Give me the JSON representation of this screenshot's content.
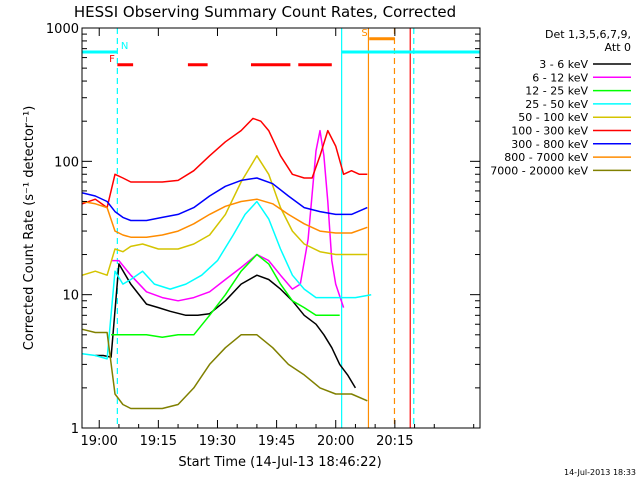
{
  "chart_data": {
    "type": "line",
    "title": "HESSI Observing Summary Count Rates, Corrected",
    "xlabel": "Start Time (14-Jul-13 18:46:22)",
    "ylabel": "Corrected Count Rate (s⁻¹ detector⁻¹)",
    "yscale": "log",
    "ylim": [
      1,
      1000
    ],
    "xlim_minutes": [
      -4.37,
      96.6
    ],
    "x_ticks": [
      {
        "label": "19:00",
        "minute": 0
      },
      {
        "label": "19:15",
        "minute": 15
      },
      {
        "label": "19:30",
        "minute": 30
      },
      {
        "label": "19:45",
        "minute": 45
      },
      {
        "label": "20:00",
        "minute": 60
      },
      {
        "label": "20:15",
        "minute": 75
      }
    ],
    "y_ticks": [
      {
        "label": "1",
        "value": 1
      },
      {
        "label": "10",
        "value": 10
      },
      {
        "label": "100",
        "value": 100
      },
      {
        "label": "1000",
        "value": 1000
      }
    ],
    "legend_header": [
      "Det 1,3,5,6,7,9,",
      "Att 0"
    ],
    "legend_position": "right",
    "footer_date": "14-Jul-2013 18:33",
    "flags": [
      {
        "label": "N",
        "color": "#00ffff",
        "segments": [
          [
            -4.37,
            4.6
          ]
        ],
        "label_minute": 5.5,
        "level": 660
      },
      {
        "label": "F",
        "color": "#ff0000",
        "segments": [
          [
            4.6,
            8.6
          ],
          [
            22.5,
            27.5
          ],
          [
            38.5,
            48.5
          ],
          [
            50.5,
            59.0
          ]
        ],
        "label_minute": 2.5,
        "level": 530
      },
      {
        "label": "S",
        "color": "#ff8c00",
        "segments": [
          [
            68.5,
            75.0
          ]
        ],
        "label_minute": 66.5,
        "level": 830
      },
      {
        "label": "",
        "color": "#00ffff",
        "segments": [
          [
            61.5,
            96.6
          ]
        ],
        "label_minute": 0,
        "level": 660
      }
    ],
    "vlines": [
      {
        "minute": 4.6,
        "color": "#00ffff",
        "style": "dashed"
      },
      {
        "minute": 61.5,
        "color": "#00ffff",
        "style": "solid"
      },
      {
        "minute": 68.3,
        "color": "#ff8c00",
        "style": "solid"
      },
      {
        "minute": 74.9,
        "color": "#ff8c00",
        "style": "dashed"
      },
      {
        "minute": 78.9,
        "color": "#ff0000",
        "style": "solid"
      },
      {
        "minute": 79.8,
        "color": "#00ffff",
        "style": "dashed"
      }
    ],
    "series": [
      {
        "name": "3 - 6 keV",
        "color": "#000000",
        "x": [
          -1,
          1,
          3,
          5,
          8,
          12,
          15,
          18,
          22,
          25,
          28,
          32,
          36,
          40,
          43,
          46,
          49,
          52,
          55,
          57,
          59,
          61,
          63,
          65
        ],
        "y": [
          3.5,
          3.5,
          3.4,
          17,
          12,
          8.5,
          8,
          7.5,
          7,
          7,
          7.2,
          9,
          12,
          14,
          13,
          11,
          9,
          7,
          6,
          5,
          4,
          3,
          2.5,
          2
        ]
      },
      {
        "name": "6 - 12 keV",
        "color": "#ff00ff",
        "x": [
          3,
          5,
          8,
          12,
          16,
          20,
          24,
          28,
          32,
          36,
          40,
          43,
          46,
          49,
          51,
          53,
          55,
          56,
          57,
          58,
          59,
          60,
          62
        ],
        "y": [
          18,
          18,
          14,
          10.5,
          9.5,
          9,
          9.5,
          10.5,
          13,
          16,
          20,
          18,
          14,
          11,
          12,
          26,
          120,
          170,
          110,
          50,
          18,
          12,
          8
        ]
      },
      {
        "name": "12 - 25 keV",
        "color": "#00ff00",
        "x": [
          3,
          5,
          8,
          12,
          16,
          20,
          24,
          28,
          32,
          36,
          40,
          43,
          46,
          49,
          52,
          55,
          58,
          61
        ],
        "y": [
          5,
          5,
          5,
          5,
          4.8,
          5,
          5,
          7,
          10,
          15,
          20,
          17,
          12,
          9,
          8,
          7,
          7,
          7
        ]
      },
      {
        "name": "25 - 50 keV",
        "color": "#00ffff",
        "x": [
          -4.3,
          -1,
          2,
          4,
          6,
          8,
          11,
          14,
          18,
          22,
          26,
          30,
          34,
          37,
          40,
          43,
          46,
          49,
          52,
          55,
          58,
          61,
          65,
          69
        ],
        "y": [
          3.6,
          3.5,
          3.3,
          15,
          12,
          13,
          15,
          12,
          11,
          12,
          14,
          18,
          28,
          40,
          50,
          37,
          22,
          14,
          11,
          9.5,
          9.5,
          9.5,
          9.5,
          10
        ]
      },
      {
        "name": "50 - 100 keV",
        "color": "#d4c400",
        "x": [
          -4.3,
          -1,
          2,
          4,
          6,
          8,
          11,
          15,
          20,
          24,
          28,
          32,
          36,
          40,
          43,
          46,
          49,
          52,
          56,
          60,
          64,
          68
        ],
        "y": [
          14,
          15,
          14,
          22,
          21,
          23,
          24,
          22,
          22,
          24,
          28,
          40,
          70,
          110,
          80,
          45,
          30,
          24,
          21,
          20,
          20,
          20
        ]
      },
      {
        "name": "100 - 300 keV",
        "color": "#ff0000",
        "x": [
          -4.3,
          -1,
          2,
          4,
          6,
          8,
          12,
          16,
          20,
          24,
          28,
          32,
          36,
          39,
          41,
          43,
          46,
          49,
          52,
          54,
          56,
          58,
          60,
          62,
          64,
          66,
          68
        ],
        "y": [
          48,
          52,
          45,
          80,
          75,
          70,
          70,
          70,
          72,
          85,
          110,
          140,
          170,
          210,
          200,
          170,
          110,
          80,
          75,
          75,
          110,
          170,
          130,
          80,
          85,
          80,
          80
        ]
      },
      {
        "name": "300 - 800 keV",
        "color": "#0000ff",
        "x": [
          -4.3,
          -1,
          2,
          4,
          6,
          8,
          12,
          16,
          20,
          24,
          28,
          32,
          36,
          40,
          44,
          48,
          52,
          56,
          60,
          64,
          68
        ],
        "y": [
          58,
          55,
          50,
          42,
          38,
          36,
          36,
          38,
          40,
          45,
          55,
          65,
          72,
          75,
          68,
          55,
          45,
          42,
          40,
          40,
          45
        ]
      },
      {
        "name": "800 - 7000 keV",
        "color": "#ff8c00",
        "x": [
          -4.3,
          -1,
          2,
          4,
          6,
          8,
          12,
          16,
          20,
          24,
          28,
          32,
          36,
          40,
          44,
          48,
          52,
          56,
          60,
          64,
          68
        ],
        "y": [
          50,
          48,
          45,
          30,
          28,
          27,
          27,
          28,
          30,
          34,
          40,
          46,
          50,
          52,
          48,
          40,
          34,
          30,
          29,
          29,
          32
        ]
      },
      {
        "name": "7000 - 20000 keV",
        "color": "#808000",
        "x": [
          -4.3,
          -1,
          2,
          4,
          6,
          8,
          12,
          16,
          20,
          24,
          28,
          32,
          36,
          40,
          44,
          48,
          52,
          56,
          60,
          64,
          68
        ],
        "y": [
          5.5,
          5.2,
          5.2,
          1.8,
          1.5,
          1.4,
          1.4,
          1.4,
          1.5,
          2,
          3,
          4,
          5,
          5,
          4,
          3,
          2.5,
          2,
          1.8,
          1.8,
          1.6
        ]
      }
    ]
  }
}
